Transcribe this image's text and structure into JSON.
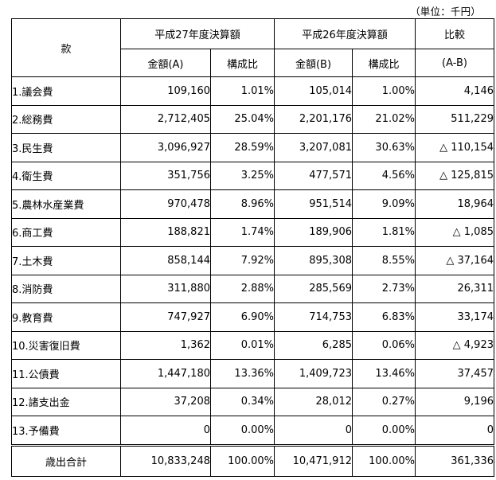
{
  "unit_note": "（単位：千円）",
  "headers": {
    "item": "款",
    "fy27": "平成27年度決算額",
    "fy26": "平成26年度決算額",
    "compare": "比較",
    "amount_a": "金額(A)",
    "ratio": "構成比",
    "amount_b": "金額(B)",
    "ratio_b": "構成比",
    "diff": "(A-B)"
  },
  "rows": [
    {
      "name": "1.議会費",
      "a": "109,160",
      "ra": "1.01%",
      "b": "105,014",
      "rb": "1.00%",
      "diff": "4,146"
    },
    {
      "name": "2.総務費",
      "a": "2,712,405",
      "ra": "25.04%",
      "b": "2,201,176",
      "rb": "21.02%",
      "diff": "511,229"
    },
    {
      "name": "3.民生費",
      "a": "3,096,927",
      "ra": "28.59%",
      "b": "3,207,081",
      "rb": "30.63%",
      "diff": "△ 110,154"
    },
    {
      "name": "4.衛生費",
      "a": "351,756",
      "ra": "3.25%",
      "b": "477,571",
      "rb": "4.56%",
      "diff": "△ 125,815"
    },
    {
      "name": "5.農林水産業費",
      "a": "970,478",
      "ra": "8.96%",
      "b": "951,514",
      "rb": "9.09%",
      "diff": "18,964"
    },
    {
      "name": "6.商工費",
      "a": "188,821",
      "ra": "1.74%",
      "b": "189,906",
      "rb": "1.81%",
      "diff": "△ 1,085"
    },
    {
      "name": "7.土木費",
      "a": "858,144",
      "ra": "7.92%",
      "b": "895,308",
      "rb": "8.55%",
      "diff": "△ 37,164"
    },
    {
      "name": "8.消防費",
      "a": "311,880",
      "ra": "2.88%",
      "b": "285,569",
      "rb": "2.73%",
      "diff": "26,311"
    },
    {
      "name": "9.教育費",
      "a": "747,927",
      "ra": "6.90%",
      "b": "714,753",
      "rb": "6.83%",
      "diff": "33,174"
    },
    {
      "name": "10.災害復旧費",
      "a": "1,362",
      "ra": "0.01%",
      "b": "6,285",
      "rb": "0.06%",
      "diff": "△ 4,923"
    },
    {
      "name": "11.公債費",
      "a": "1,447,180",
      "ra": "13.36%",
      "b": "1,409,723",
      "rb": "13.46%",
      "diff": "37,457"
    },
    {
      "name": "12.諸支出金",
      "a": "37,208",
      "ra": "0.34%",
      "b": "28,012",
      "rb": "0.27%",
      "diff": "9,196"
    },
    {
      "name": "13.予備費",
      "a": "0",
      "ra": "0.00%",
      "b": "0",
      "rb": "0.00%",
      "diff": "0"
    }
  ],
  "total": {
    "name": "歳出合計",
    "a": "10,833,248",
    "ra": "100.00%",
    "b": "10,471,912",
    "rb": "100.00%",
    "diff": "361,336"
  }
}
